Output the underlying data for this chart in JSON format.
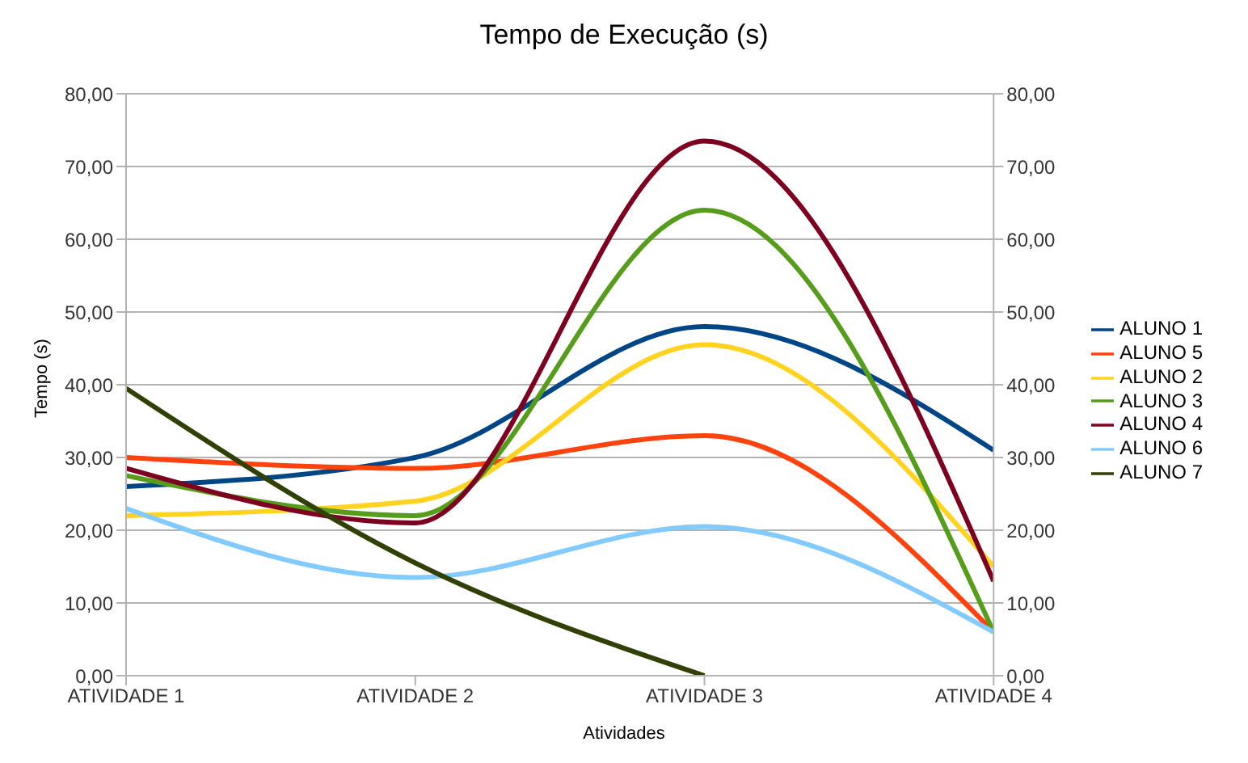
{
  "chart_data": {
    "type": "line",
    "title": "Tempo de Execução (s)",
    "xlabel": "Atividades",
    "ylabel": "Tempo (s)",
    "categories": [
      "ATIVIDADE 1",
      "ATIVIDADE 2",
      "ATIVIDADE 3",
      "ATIVIDADE 4"
    ],
    "series": [
      {
        "name": "ALUNO 1",
        "color": "#004586",
        "values": [
          26,
          30,
          48,
          31
        ]
      },
      {
        "name": "ALUNO 5",
        "color": "#ff420e",
        "values": [
          30,
          28.5,
          33,
          6
        ]
      },
      {
        "name": "ALUNO 2",
        "color": "#ffd320",
        "values": [
          22,
          24,
          45.5,
          15
        ]
      },
      {
        "name": "ALUNO 3",
        "color": "#579d1c",
        "values": [
          27.5,
          22,
          64,
          6
        ]
      },
      {
        "name": "ALUNO 4",
        "color": "#7e0021",
        "values": [
          28.5,
          21,
          73.5,
          13
        ]
      },
      {
        "name": "ALUNO 6",
        "color": "#83caff",
        "values": [
          23,
          13.5,
          20.5,
          6
        ]
      },
      {
        "name": "ALUNO 7",
        "color": "#314004",
        "values": [
          39.5,
          15.5,
          0,
          null
        ]
      }
    ],
    "ylim": [
      0,
      80
    ],
    "yticks": [
      {
        "value": 0,
        "label": "0,00"
      },
      {
        "value": 10,
        "label": "10,00"
      },
      {
        "value": 20,
        "label": "20,00"
      },
      {
        "value": 30,
        "label": "30,00"
      },
      {
        "value": 40,
        "label": "40,00"
      },
      {
        "value": 50,
        "label": "50,00"
      },
      {
        "value": 60,
        "label": "60,00"
      },
      {
        "value": 70,
        "label": "70,00"
      },
      {
        "value": 80,
        "label": "80,00"
      }
    ],
    "y2lim": [
      0,
      80
    ],
    "y2ticks": [
      {
        "value": 0,
        "label": "0,00"
      },
      {
        "value": 10,
        "label": "10,00"
      },
      {
        "value": 20,
        "label": "20,00"
      },
      {
        "value": 30,
        "label": "30,00"
      },
      {
        "value": 40,
        "label": "40,00"
      },
      {
        "value": 50,
        "label": "50,00"
      },
      {
        "value": 60,
        "label": "60,00"
      },
      {
        "value": 70,
        "label": "70,00"
      },
      {
        "value": 80,
        "label": "80,00"
      }
    ],
    "grid": "y",
    "legend": "right",
    "marker": "none",
    "line_style": "solid"
  }
}
